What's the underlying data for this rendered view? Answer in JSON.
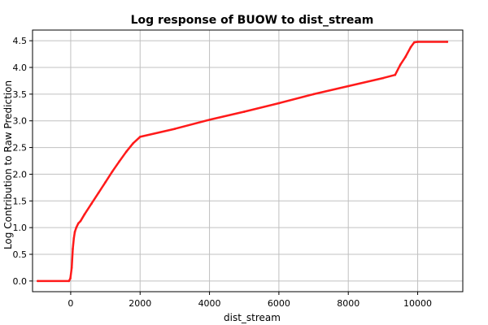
{
  "chart_data": {
    "type": "line",
    "title": "Log response of BUOW to dist_stream",
    "xlabel": "dist_stream",
    "ylabel": "Log Contribution to Raw Prediction",
    "xlim": [
      -1100,
      11300
    ],
    "ylim": [
      -0.2,
      4.7
    ],
    "x_ticks": [
      0,
      2000,
      4000,
      6000,
      8000,
      10000
    ],
    "x_tick_labels": [
      "0",
      "2000",
      "4000",
      "6000",
      "8000",
      "10000"
    ],
    "y_ticks": [
      0.0,
      0.5,
      1.0,
      1.5,
      2.0,
      2.5,
      3.0,
      3.5,
      4.0,
      4.5
    ],
    "y_tick_labels": [
      "0.0",
      "0.5",
      "1.0",
      "1.5",
      "2.0",
      "2.5",
      "3.0",
      "3.5",
      "4.0",
      "4.5"
    ],
    "grid": true,
    "colors": {
      "line": "#ff1a1a",
      "grid": "#c0c0c0",
      "frame": "#000000"
    },
    "series": [
      {
        "x": [
          -950,
          -50,
          -10,
          30,
          60,
          90,
          120,
          160,
          220,
          280,
          400,
          600,
          800,
          1000,
          1200,
          1400,
          1600,
          1800,
          2000,
          3000,
          4000,
          5000,
          6000,
          7000,
          8000,
          9000,
          9350,
          9500,
          9650,
          9800,
          9900,
          10000,
          10850
        ],
        "y": [
          0.0,
          0.0,
          0.05,
          0.25,
          0.6,
          0.8,
          0.92,
          1.0,
          1.08,
          1.12,
          1.25,
          1.45,
          1.65,
          1.85,
          2.05,
          2.24,
          2.42,
          2.58,
          2.7,
          2.85,
          3.02,
          3.17,
          3.33,
          3.5,
          3.65,
          3.8,
          3.86,
          4.05,
          4.2,
          4.38,
          4.47,
          4.48,
          4.48
        ]
      }
    ]
  }
}
